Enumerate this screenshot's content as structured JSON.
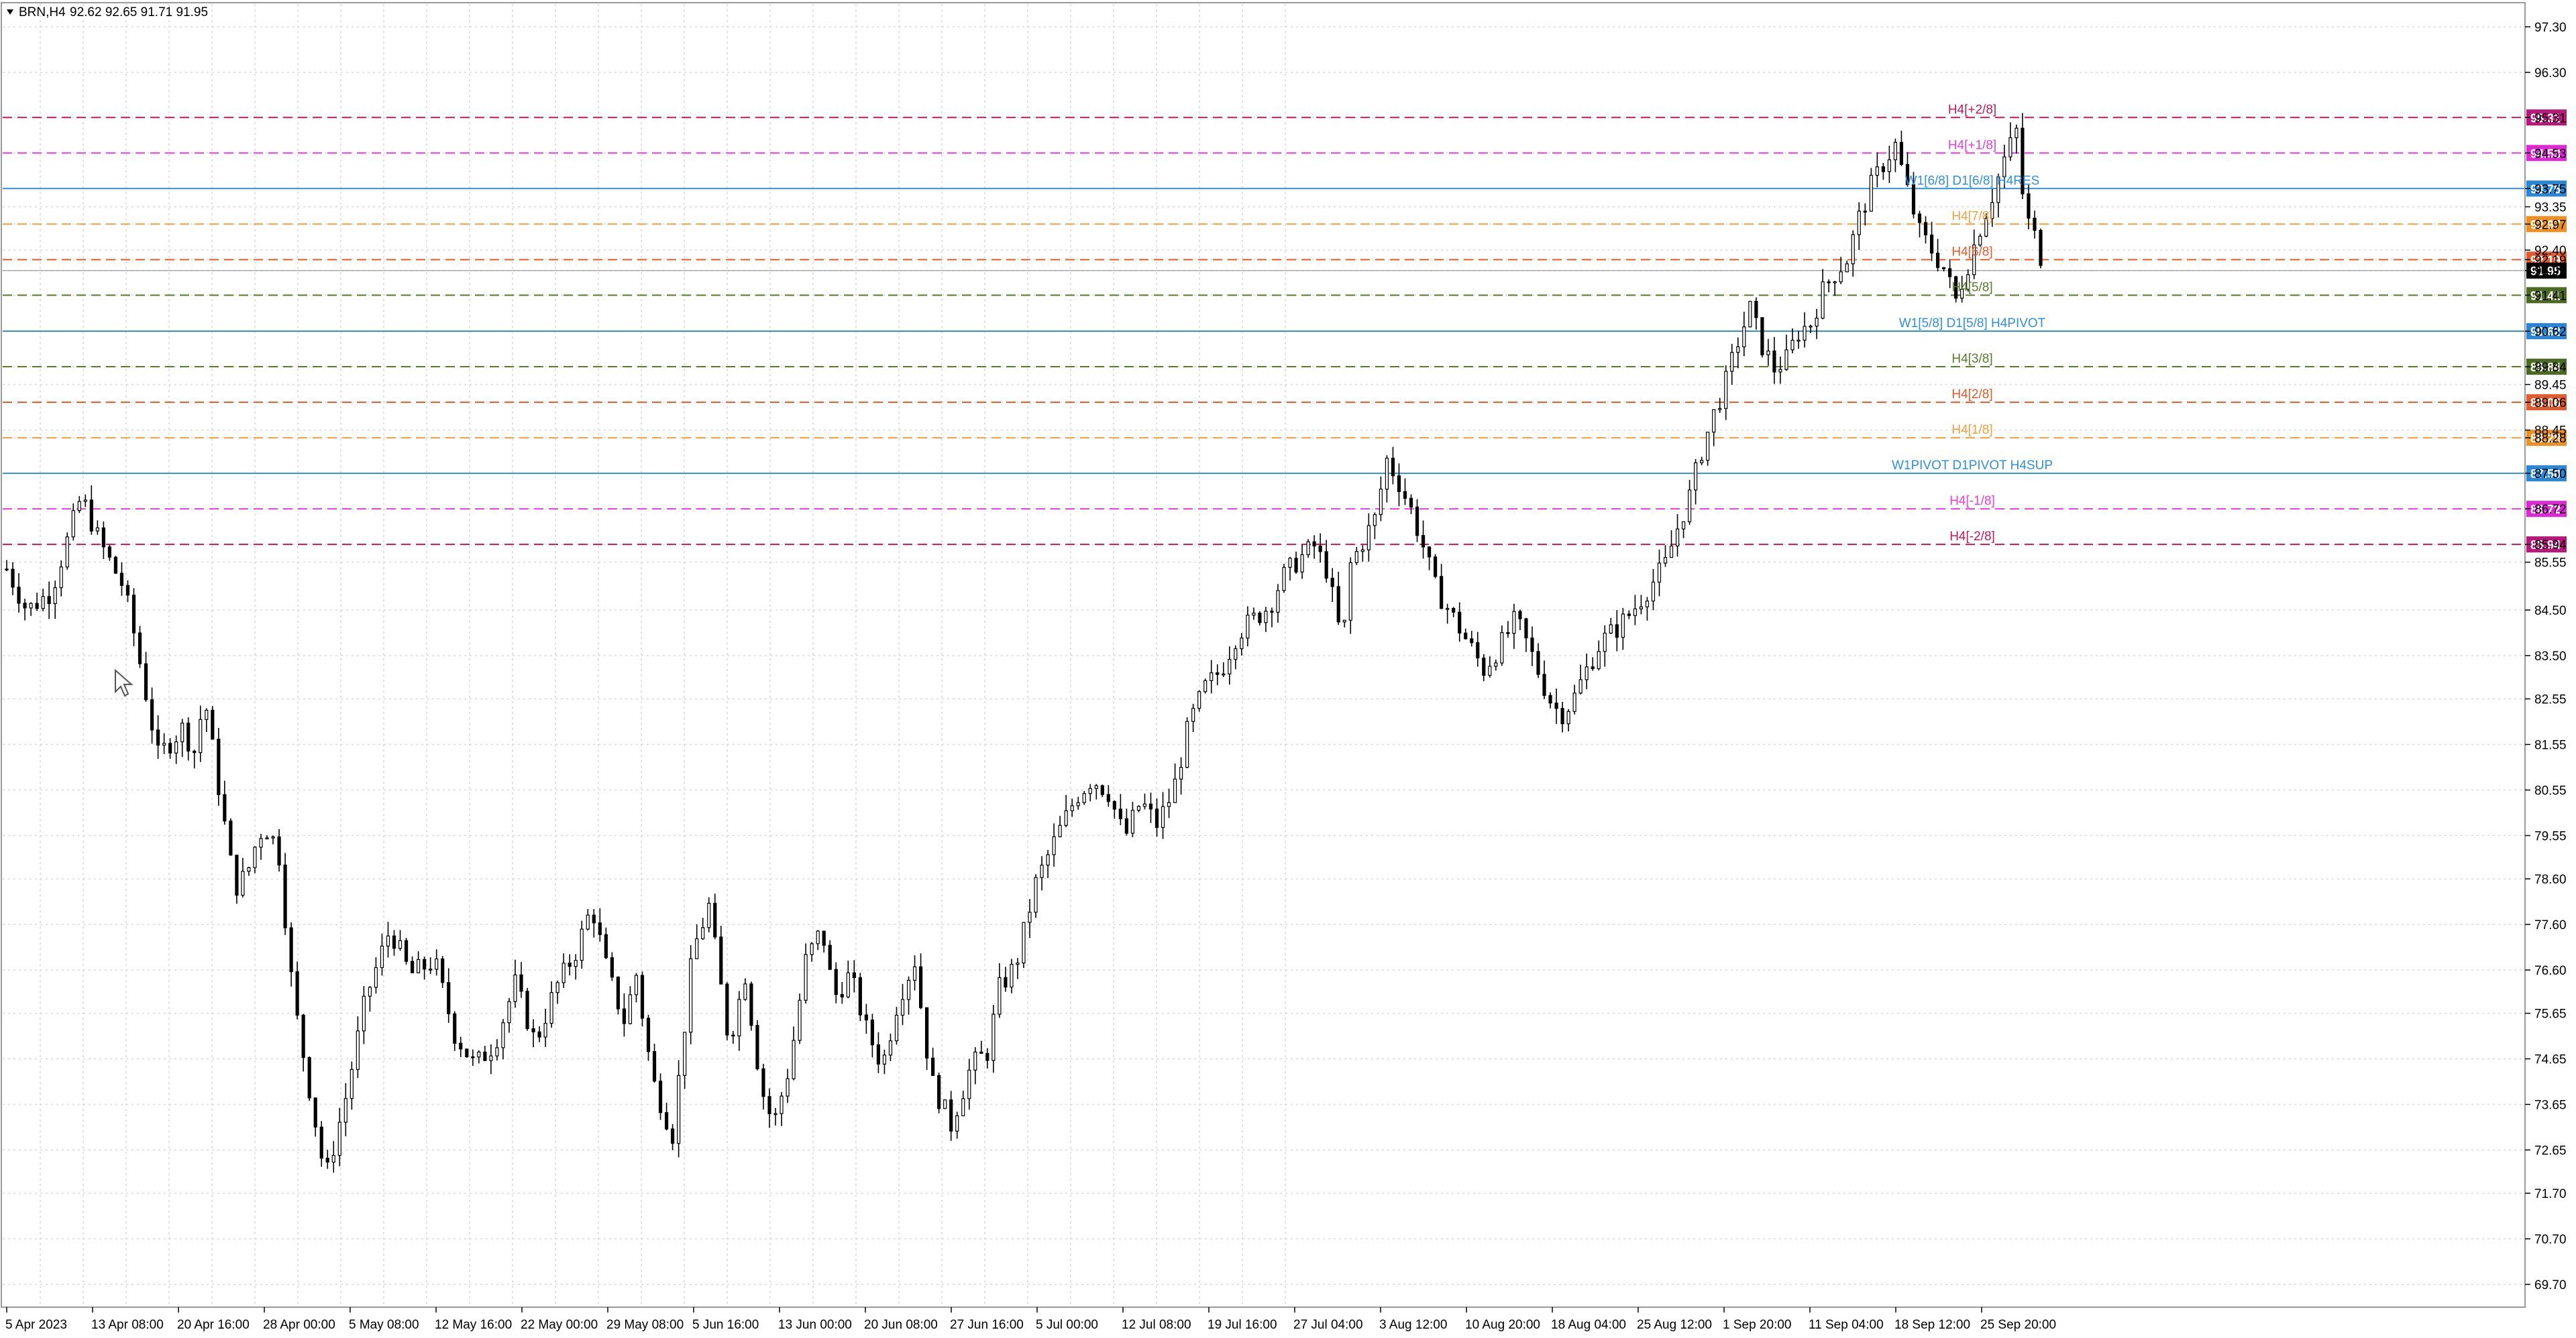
{
  "chart_data": {
    "type": "candlestick",
    "symbol": "BRN",
    "timeframe": "H4",
    "header": {
      "symbol_label": "BRN,H4",
      "ohlc_text": "92.62 92.65 91.71 91.95",
      "open": 92.62,
      "high": 92.65,
      "low": 91.71,
      "close": 91.95
    },
    "current_price": 91.95,
    "ylim": [
      69.2,
      97.8
    ],
    "y_ticks": [
      "97.30",
      "96.30",
      "95.31",
      "94.53",
      "93.75",
      "93.35",
      "92.97",
      "92.40",
      "92.19",
      "91.95",
      "91.41",
      "90.62",
      "89.84",
      "89.45",
      "89.06",
      "88.45",
      "88.28",
      "87.50",
      "86.72",
      "85.94",
      "85.55",
      "84.50",
      "83.50",
      "82.55",
      "81.55",
      "80.55",
      "79.55",
      "78.60",
      "77.60",
      "76.60",
      "75.65",
      "74.65",
      "73.65",
      "72.65",
      "71.70",
      "70.70",
      "69.70"
    ],
    "x_labels": [
      "5 Apr 2023",
      "13 Apr 08:00",
      "20 Apr 16:00",
      "28 Apr 00:00",
      "5 May 08:00",
      "12 May 16:00",
      "22 May 00:00",
      "29 May 08:00",
      "5 Jun 16:00",
      "13 Jun 00:00",
      "20 Jun 08:00",
      "27 Jun 16:00",
      "5 Jul 00:00",
      "12 Jul 08:00",
      "19 Jul 16:00",
      "27 Jul 04:00",
      "3 Aug 12:00",
      "10 Aug 20:00",
      "18 Aug 04:00",
      "25 Aug 12:00",
      "1 Sep 20:00",
      "11 Sep 04:00",
      "18 Sep 12:00",
      "25 Sep 20:00"
    ],
    "price_path": [
      [
        0,
        85.4
      ],
      [
        10,
        84.5
      ],
      [
        22,
        84.9
      ],
      [
        32,
        86.3
      ],
      [
        37,
        87.0
      ],
      [
        46,
        86.0
      ],
      [
        58,
        85.0
      ],
      [
        64,
        83.8
      ],
      [
        75,
        81.3
      ],
      [
        87,
        81.9
      ],
      [
        93,
        81.4
      ],
      [
        98,
        82.6
      ],
      [
        104,
        80.9
      ],
      [
        113,
        78.4
      ],
      [
        119,
        78.7
      ],
      [
        125,
        79.6
      ],
      [
        130,
        79.7
      ],
      [
        135,
        79.1
      ],
      [
        142,
        76.0
      ],
      [
        150,
        74.0
      ],
      [
        158,
        72.0
      ],
      [
        168,
        73.8
      ],
      [
        178,
        76.0
      ],
      [
        190,
        77.5
      ],
      [
        200,
        76.5
      ],
      [
        212,
        76.8
      ],
      [
        222,
        75.2
      ],
      [
        232,
        74.5
      ],
      [
        242,
        75.0
      ],
      [
        252,
        76.3
      ],
      [
        262,
        75.0
      ],
      [
        272,
        76.2
      ],
      [
        282,
        77.0
      ],
      [
        290,
        78.0
      ],
      [
        298,
        76.5
      ],
      [
        306,
        75.5
      ],
      [
        312,
        76.5
      ],
      [
        320,
        74.2
      ],
      [
        330,
        73.0
      ],
      [
        340,
        77.0
      ],
      [
        348,
        78.0
      ],
      [
        358,
        75.0
      ],
      [
        366,
        76.5
      ],
      [
        374,
        74.0
      ],
      [
        380,
        73.2
      ],
      [
        388,
        74.5
      ],
      [
        396,
        76.8
      ],
      [
        404,
        77.5
      ],
      [
        410,
        76.0
      ],
      [
        418,
        76.5
      ],
      [
        426,
        75.3
      ],
      [
        434,
        74.5
      ],
      [
        442,
        76.0
      ],
      [
        450,
        76.8
      ],
      [
        458,
        74.2
      ],
      [
        468,
        73.2
      ],
      [
        478,
        74.5
      ],
      [
        486,
        74.8
      ],
      [
        492,
        76.2
      ],
      [
        500,
        76.7
      ],
      [
        510,
        78.5
      ],
      [
        520,
        79.5
      ],
      [
        530,
        80.4
      ],
      [
        538,
        80.8
      ],
      [
        546,
        80.5
      ],
      [
        554,
        79.5
      ],
      [
        562,
        80.3
      ],
      [
        570,
        79.8
      ],
      [
        578,
        80.5
      ],
      [
        586,
        82.0
      ],
      [
        594,
        82.8
      ],
      [
        602,
        83.2
      ],
      [
        610,
        84.0
      ],
      [
        618,
        84.3
      ],
      [
        626,
        84.6
      ],
      [
        632,
        85.2
      ],
      [
        640,
        85.6
      ],
      [
        648,
        85.9
      ],
      [
        654,
        85.4
      ],
      [
        658,
        84.6
      ],
      [
        662,
        83.7
      ],
      [
        666,
        85.5
      ],
      [
        672,
        86.0
      ],
      [
        678,
        86.5
      ],
      [
        684,
        87.8
      ],
      [
        690,
        87.3
      ],
      [
        696,
        86.7
      ],
      [
        702,
        85.9
      ],
      [
        708,
        85.0
      ],
      [
        716,
        84.4
      ],
      [
        724,
        83.8
      ],
      [
        732,
        83.2
      ],
      [
        740,
        83.7
      ],
      [
        748,
        84.3
      ],
      [
        756,
        83.5
      ],
      [
        764,
        82.6
      ],
      [
        770,
        82.2
      ],
      [
        776,
        82.5
      ],
      [
        782,
        83.1
      ],
      [
        790,
        83.8
      ],
      [
        798,
        84.1
      ],
      [
        806,
        84.5
      ],
      [
        814,
        85.0
      ],
      [
        822,
        85.5
      ],
      [
        828,
        86.3
      ],
      [
        834,
        87.0
      ],
      [
        840,
        88.0
      ],
      [
        846,
        88.8
      ],
      [
        852,
        89.5
      ],
      [
        858,
        90.4
      ],
      [
        864,
        91.1
      ],
      [
        870,
        90.3
      ],
      [
        876,
        89.8
      ],
      [
        882,
        90.0
      ],
      [
        888,
        90.6
      ],
      [
        894,
        90.8
      ],
      [
        900,
        91.5
      ],
      [
        906,
        91.9
      ],
      [
        912,
        92.2
      ],
      [
        918,
        93.1
      ],
      [
        924,
        93.8
      ],
      [
        930,
        94.3
      ],
      [
        936,
        94.7
      ],
      [
        942,
        93.7
      ],
      [
        948,
        92.8
      ],
      [
        954,
        92.4
      ],
      [
        960,
        92.0
      ],
      [
        966,
        91.3
      ],
      [
        972,
        92.1
      ],
      [
        978,
        92.9
      ],
      [
        984,
        93.6
      ],
      [
        990,
        94.4
      ],
      [
        996,
        95.0
      ],
      [
        1000,
        93.2
      ],
      [
        1006,
        92.6
      ],
      [
        1010,
        91.95
      ]
    ],
    "levels": [
      {
        "price": 95.31,
        "labels": [
          "H4[+2/8]"
        ],
        "line_color": "#c2185b",
        "text_color": "#c2185b",
        "tag_color": "#b7187a",
        "style": "dashed"
      },
      {
        "price": 94.53,
        "labels": [
          "H4[+1/8]"
        ],
        "line_color": "#e83ee0",
        "text_color": "#e83ee0",
        "tag_color": "#e027d8",
        "style": "dashed"
      },
      {
        "price": 93.75,
        "labels": [
          "W1[6/8] D1[6/8] H4RES"
        ],
        "line_color": "#2f8fe0",
        "text_color": "#2f8fe0",
        "tag_color": "#2a86d6",
        "style": "solid"
      },
      {
        "price": 92.97,
        "labels": [
          "H4[7/8]"
        ],
        "line_color": "#f0a040",
        "text_color": "#f0a040",
        "tag_color": "#ee8f22",
        "style": "dashed"
      },
      {
        "price": 92.19,
        "labels": [
          "H4[6/8]"
        ],
        "line_color": "#e65a2a",
        "text_color": "#e65a2a",
        "tag_color": "#e25b2e",
        "style": "dashed"
      },
      {
        "price": 91.41,
        "labels": [
          "H4[5/8]"
        ],
        "line_color": "#5a7a2a",
        "text_color": "#5a7a2a",
        "tag_color": "#4c6a22",
        "style": "dashed"
      },
      {
        "price": 90.62,
        "labels": [
          "W1[5/8] D1[5/8] H4PIVOT"
        ],
        "line_color": "#2f8fe0",
        "text_color": "#2f8fe0",
        "tag_color": "#2a86d6",
        "style": "solid"
      },
      {
        "price": 89.84,
        "labels": [
          "H4[3/8]"
        ],
        "line_color": "#5a7a2a",
        "text_color": "#5a7a2a",
        "tag_color": "#4c6a22",
        "style": "dashed"
      },
      {
        "price": 89.06,
        "labels": [
          "H4[2/8]"
        ],
        "line_color": "#e65a2a",
        "text_color": "#e65a2a",
        "tag_color": "#e25b2e",
        "style": "dashed"
      },
      {
        "price": 88.28,
        "labels": [
          "H4[1/8]"
        ],
        "line_color": "#f0a040",
        "text_color": "#f0a040",
        "tag_color": "#ee8f22",
        "style": "dashed"
      },
      {
        "price": 87.5,
        "labels": [
          "W1PIVOT D1PIVOT H4SUP"
        ],
        "line_color": "#2f8fe0",
        "text_color": "#2f8fe0",
        "tag_color": "#2a86d6",
        "style": "solid"
      },
      {
        "price": 86.72,
        "labels": [
          "H4[-1/8]"
        ],
        "line_color": "#e83ee0",
        "text_color": "#e83ee0",
        "tag_color": "#e027d8",
        "style": "dashed"
      },
      {
        "price": 85.94,
        "labels": [
          "H4[-2/8]"
        ],
        "line_color": "#c2185b",
        "text_color": "#c2185b",
        "tag_color": "#b7187a",
        "style": "dashed"
      }
    ],
    "colors": {
      "background": "#ffffff",
      "grid": "#d9d9d9",
      "candle": "#000000",
      "axis_text": "#000000",
      "current_price_tag": "#000000"
    },
    "grid": true,
    "legend": "none"
  }
}
